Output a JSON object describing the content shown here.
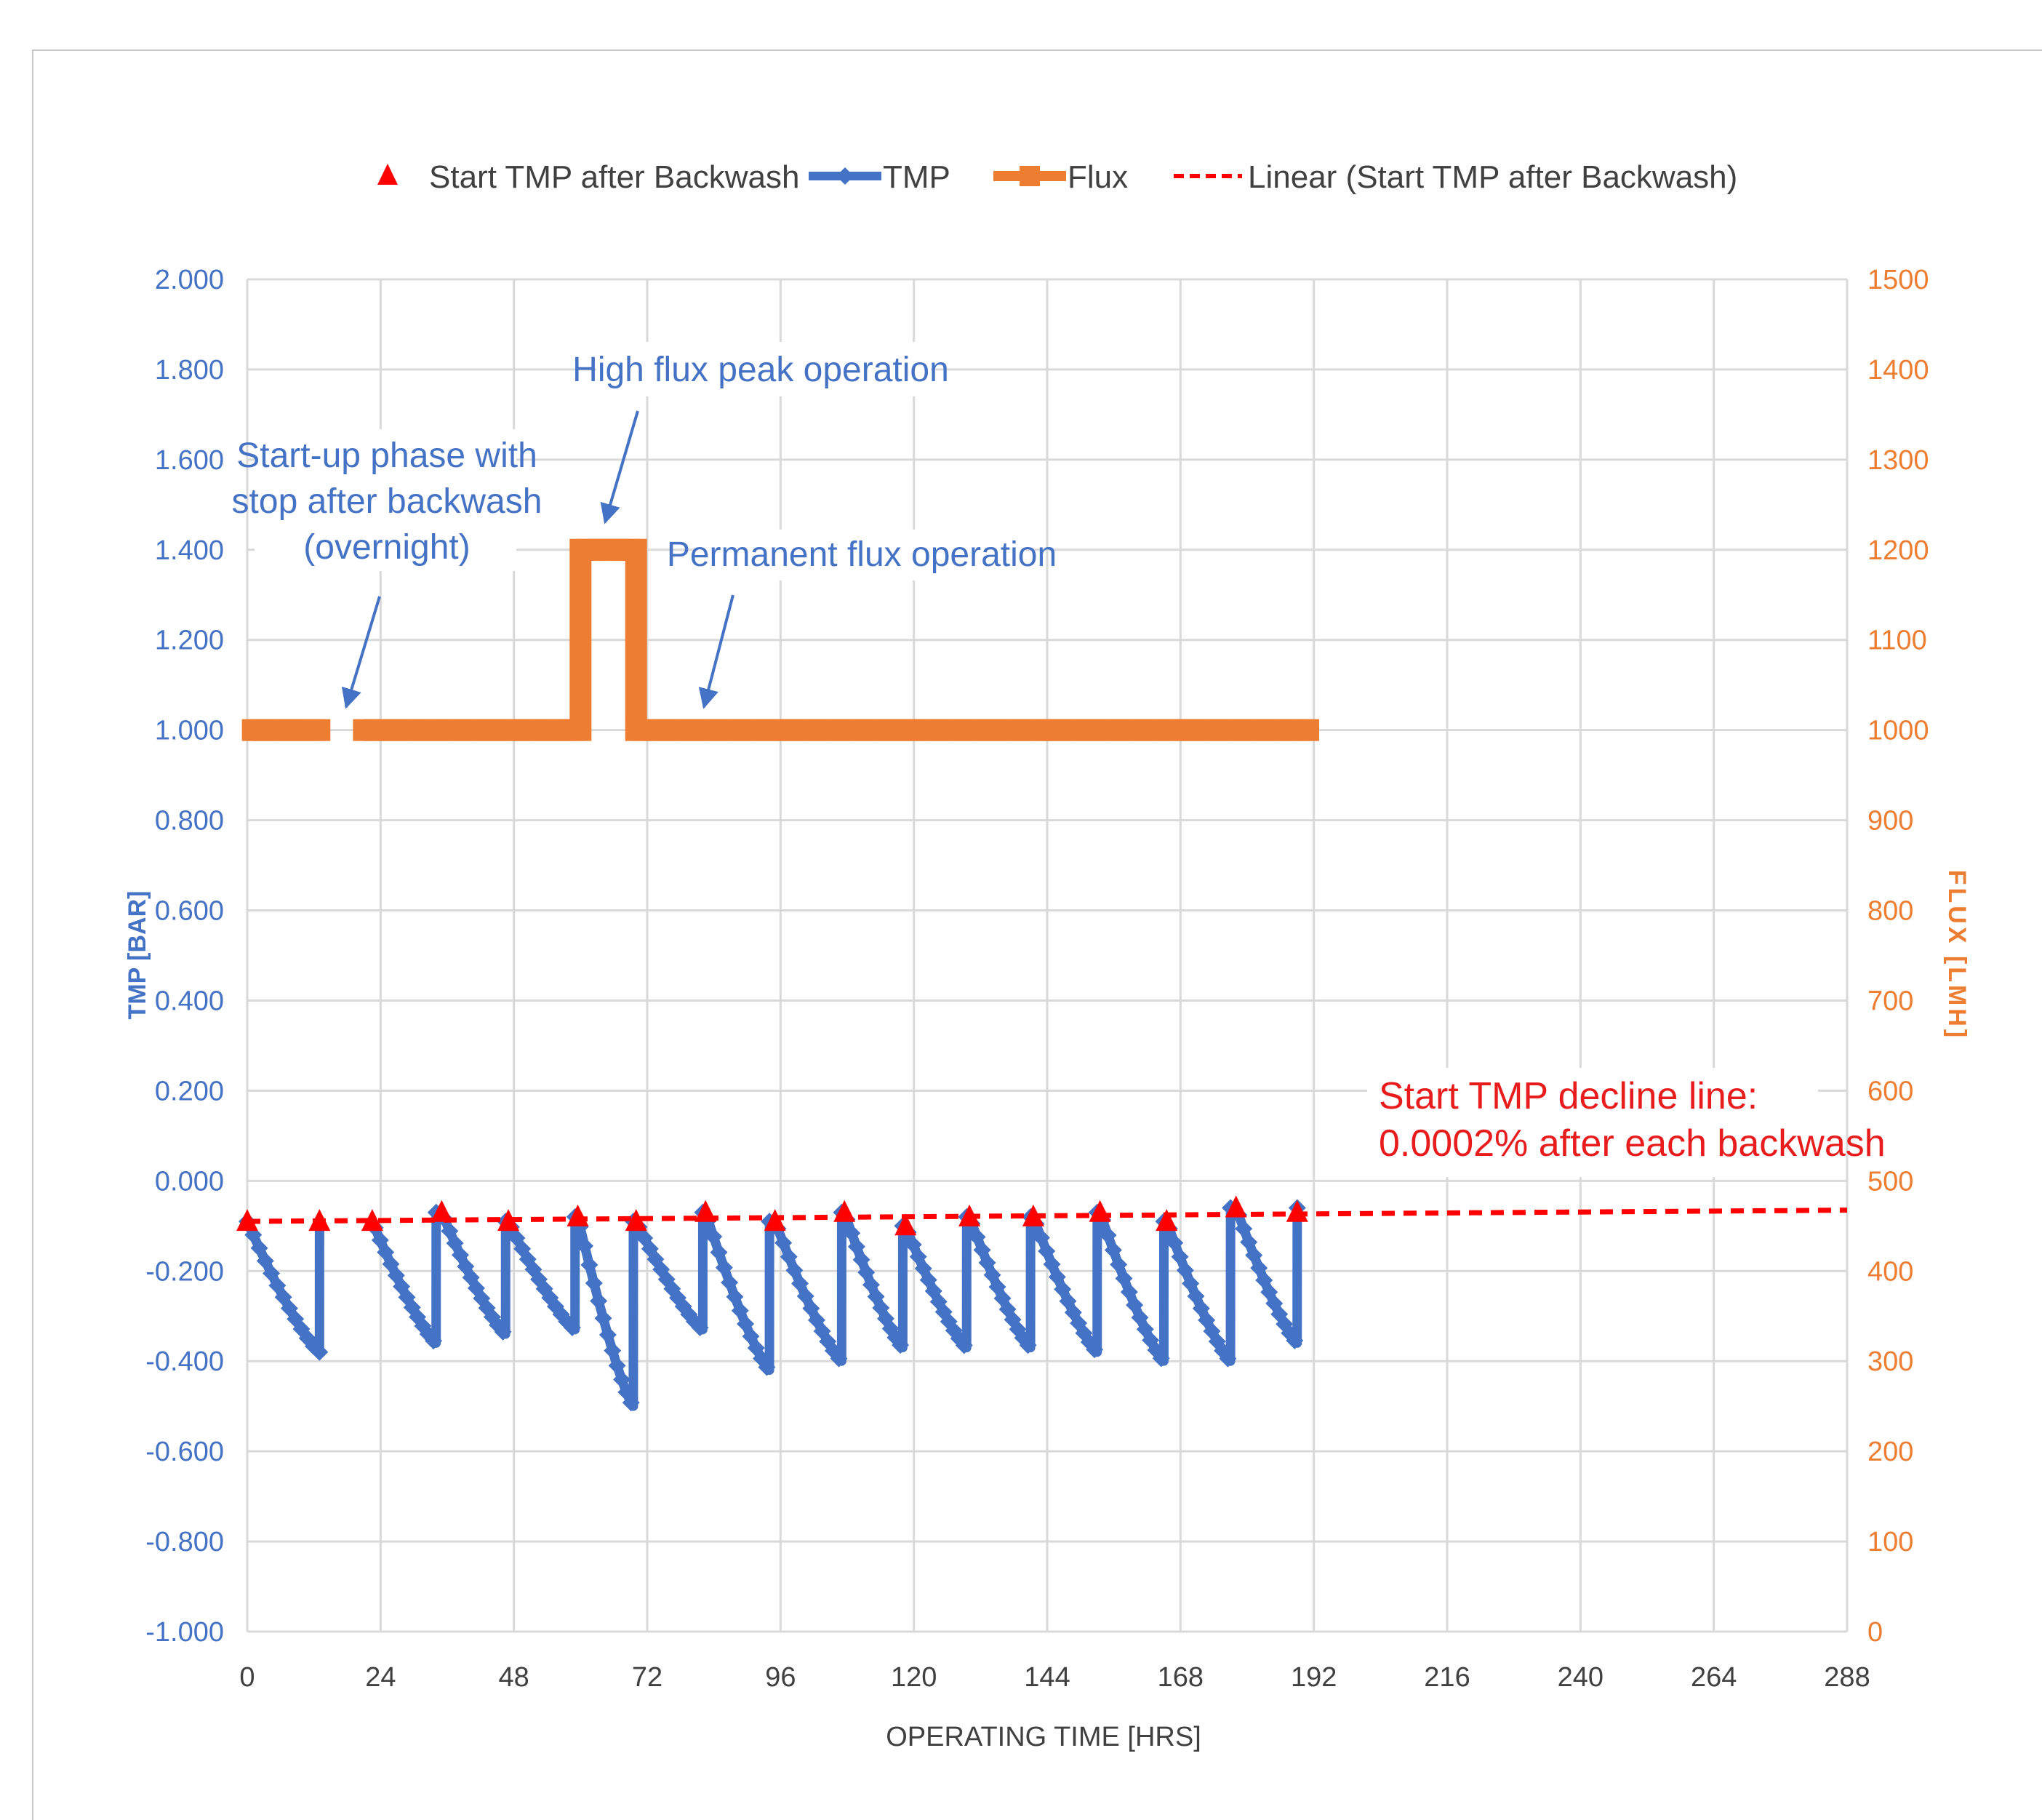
{
  "chart_data": {
    "type": "line",
    "xlabel": "OPERATING TIME [HRS]",
    "ylabel_left": "TMP [BAR]",
    "ylabel_right": "FLUX [LMH]",
    "xlim": [
      0,
      288
    ],
    "ylim_left": [
      -1.0,
      2.0
    ],
    "ylim_right": [
      0,
      1500
    ],
    "x_ticks": [
      "0",
      "24",
      "48",
      "72",
      "96",
      "120",
      "144",
      "168",
      "192",
      "216",
      "240",
      "264",
      "288"
    ],
    "y_left_ticks": [
      "2.000",
      "1.800",
      "1.600",
      "1.400",
      "1.200",
      "1.000",
      "0.800",
      "0.600",
      "0.400",
      "0.200",
      "0.000",
      "-0.200",
      "-0.400",
      "-0.600",
      "-0.800",
      "-1.000"
    ],
    "y_right_ticks": [
      "1500",
      "1400",
      "1300",
      "1200",
      "1100",
      "1000",
      "900",
      "800",
      "700",
      "600",
      "500",
      "400",
      "300",
      "200",
      "100",
      "0"
    ],
    "grid": true,
    "legend_position": "top",
    "legend": [
      {
        "label": "Start TMP after Backwash",
        "color": "#ff0000",
        "marker": "triangle"
      },
      {
        "label": "TMP",
        "color": "#4472c4",
        "marker": "diamond"
      },
      {
        "label": "Flux",
        "color": "#ed7d31",
        "marker": "square"
      },
      {
        "label": "Linear (Start TMP after Backwash)",
        "color": "#ff0000",
        "style": "dashed"
      }
    ],
    "colors": {
      "tmp": "#4472c4",
      "flux": "#ed7d31",
      "start_tmp": "#ff0000",
      "trend": "#ff0000",
      "grid": "#d9d9d9"
    },
    "tmp_cycles": [
      {
        "start": 0,
        "end": 13,
        "tmp_start": -0.09,
        "tmp_end": -0.38
      },
      {
        "start": 22.5,
        "end": 34,
        "tmp_start": -0.09,
        "tmp_end": -0.36
      },
      {
        "start": 35,
        "end": 46.5,
        "tmp_start": -0.07,
        "tmp_end": -0.34
      },
      {
        "start": 47,
        "end": 59,
        "tmp_start": -0.09,
        "tmp_end": -0.33
      },
      {
        "start": 59.5,
        "end": 69.5,
        "tmp_start": -0.08,
        "tmp_end": -0.5
      },
      {
        "start": 70,
        "end": 82,
        "tmp_start": -0.09,
        "tmp_end": -0.33
      },
      {
        "start": 82.5,
        "end": 94,
        "tmp_start": -0.07,
        "tmp_end": -0.42
      },
      {
        "start": 95,
        "end": 107,
        "tmp_start": -0.09,
        "tmp_end": -0.4
      },
      {
        "start": 107.5,
        "end": 118,
        "tmp_start": -0.07,
        "tmp_end": -0.37
      },
      {
        "start": 118.5,
        "end": 129.5,
        "tmp_start": -0.1,
        "tmp_end": -0.37
      },
      {
        "start": 130,
        "end": 141,
        "tmp_start": -0.08,
        "tmp_end": -0.37
      },
      {
        "start": 141.5,
        "end": 153,
        "tmp_start": -0.08,
        "tmp_end": -0.38
      },
      {
        "start": 153.5,
        "end": 165,
        "tmp_start": -0.07,
        "tmp_end": -0.4
      },
      {
        "start": 165.5,
        "end": 177,
        "tmp_start": -0.09,
        "tmp_end": -0.4
      },
      {
        "start": 178,
        "end": 189,
        "tmp_start": -0.06,
        "tmp_end": -0.36
      }
    ],
    "start_tmp_after_backwash": {
      "x": [
        0,
        13,
        22.5,
        35,
        47,
        59.5,
        70,
        82.5,
        95,
        107.5,
        118.5,
        130,
        141.5,
        153.5,
        165.5,
        178,
        189
      ],
      "y": [
        -0.09,
        -0.09,
        -0.09,
        -0.07,
        -0.09,
        -0.08,
        -0.09,
        -0.07,
        -0.09,
        -0.07,
        -0.1,
        -0.08,
        -0.08,
        -0.07,
        -0.09,
        -0.06,
        -0.07
      ]
    },
    "linear_trend": {
      "x": [
        0,
        288
      ],
      "y": [
        -0.09,
        -0.065
      ]
    },
    "flux": {
      "x": [
        0,
        14,
        14,
        21,
        21,
        60,
        60,
        70,
        70,
        192
      ],
      "y": [
        1000,
        1000,
        null,
        null,
        1000,
        1000,
        1200,
        1200,
        1000,
        1000
      ]
    },
    "annotations": {
      "startup": [
        "Start-up phase with",
        "stop after backwash",
        "(overnight)"
      ],
      "high_flux": "High flux peak operation",
      "permanent": "Permanent flux operation",
      "decline": [
        "Start TMP decline line:",
        "0.0002% after each backwash"
      ]
    }
  }
}
